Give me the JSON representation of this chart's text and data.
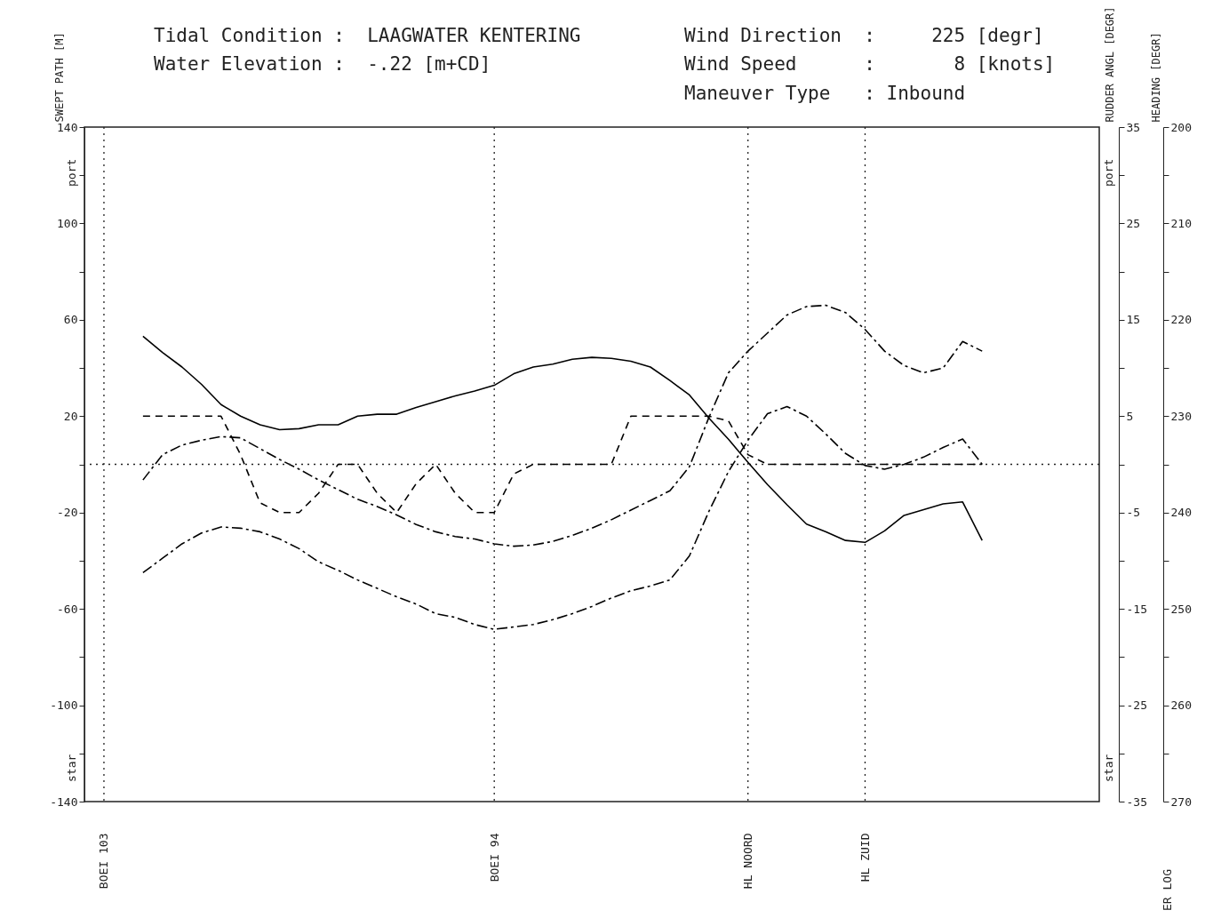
{
  "chart_data": {
    "type": "line",
    "categories": [
      "BOEI 103",
      null,
      null,
      null,
      null,
      null,
      null,
      null,
      null,
      null,
      null,
      null,
      null,
      null,
      null,
      null,
      null,
      null,
      null,
      null,
      "BOEI 94",
      null,
      null,
      null,
      null,
      null,
      null,
      null,
      null,
      null,
      null,
      null,
      null,
      "HL NOORD",
      null,
      null,
      null,
      null,
      null,
      "HL  ZUID",
      null,
      null,
      null,
      null,
      null,
      null,
      null,
      null,
      null,
      null,
      null
    ],
    "series": [
      {
        "color": "#000000",
        "line_style": "dashdot",
        "values": [
          null,
          null,
          -6.5,
          4,
          8,
          10,
          11.5,
          11,
          6.5,
          2,
          -2,
          -6.5,
          -10.5,
          -14.5,
          -17.5,
          -21,
          -25,
          -28,
          -30,
          -31,
          -33,
          -34,
          -33.5,
          -32,
          -29.5,
          -26.5,
          -23,
          -19,
          -15,
          -11,
          -1,
          19.5,
          38,
          47,
          54.5,
          62,
          65.5,
          66,
          63,
          56,
          47,
          41,
          38,
          40,
          51,
          47,
          null,
          null,
          null,
          null,
          null
        ]
      },
      {
        "color": "#000000",
        "line_style": "dashdot",
        "values": [
          null,
          null,
          -45,
          -39,
          -33,
          -28.5,
          -26,
          -26.5,
          -28,
          -31,
          -35,
          -40.5,
          -44,
          -48,
          -51.5,
          -55,
          -58,
          -62,
          -63.5,
          -66.5,
          -68.5,
          -67.5,
          -66.5,
          -64.5,
          -62,
          -59,
          -55.5,
          -52.5,
          -50.5,
          -48,
          -38,
          -19.5,
          -3,
          10,
          21,
          24,
          20,
          12.5,
          4.5,
          -0.5,
          -2,
          0,
          3,
          7,
          10.5,
          0,
          null,
          null,
          null,
          null,
          null
        ]
      },
      {
        "color": "#000000",
        "line_style": "dashed",
        "axis": "y2",
        "values": [
          null,
          null,
          5,
          5,
          5,
          5,
          5,
          1,
          -4,
          -5,
          -5,
          -3,
          0,
          0,
          -3,
          -5,
          -2,
          0,
          -3,
          -5,
          -5,
          -1,
          0,
          0,
          0,
          0,
          0,
          5,
          5,
          5,
          5,
          5,
          4.5,
          1,
          0,
          0,
          0,
          0,
          0,
          0,
          0,
          0,
          0,
          0,
          0,
          0,
          null,
          null,
          null,
          null,
          null
        ]
      },
      {
        "color": "#000000",
        "line_style": "solid",
        "axis": "y3",
        "values": [
          null,
          null,
          221.7,
          223.4,
          224.9,
          226.7,
          228.8,
          230,
          230.9,
          231.4,
          231.3,
          230.9,
          230.9,
          230,
          229.8,
          229.8,
          229.1,
          228.5,
          227.9,
          227.4,
          226.8,
          225.6,
          224.9,
          224.6,
          224.1,
          223.9,
          224,
          224.3,
          224.9,
          226.3,
          227.8,
          230.2,
          232.4,
          234.8,
          237.1,
          239.2,
          241.2,
          242,
          242.9,
          243.1,
          241.9,
          240.3,
          239.7,
          239.1,
          238.9,
          242.9,
          null,
          null,
          null,
          null,
          null
        ]
      }
    ],
    "ylabel": "SWEPT PATH [M]",
    "y2label": "RUDDER ANGL [DEGR]",
    "y3label": "HEADING [DEGR]",
    "ylim": [
      -140,
      140
    ],
    "yticks": [
      140,
      {
        "value": 120,
        "label": null
      },
      100,
      {
        "value": 80,
        "label": null
      },
      60,
      {
        "value": 40,
        "label": null
      },
      20,
      {
        "value": 0,
        "label": null
      },
      -20,
      {
        "value": -40,
        "label": null
      },
      -60,
      {
        "value": -80,
        "label": null
      },
      -100,
      {
        "value": -120,
        "label": null
      },
      -140
    ],
    "y2lim": [
      -35,
      35
    ],
    "y2ticks": [
      35,
      {
        "value": 30,
        "label": null
      },
      25,
      {
        "value": 20,
        "label": null
      },
      15,
      {
        "value": 10,
        "label": null
      },
      5,
      {
        "value": 0,
        "label": null
      },
      -5,
      {
        "value": -10,
        "label": null
      },
      -15,
      {
        "value": -20,
        "label": null
      },
      -25,
      {
        "value": -30,
        "label": null
      },
      -35
    ],
    "y3lim": [
      270,
      200
    ],
    "y3ticks": [
      200,
      {
        "value": 205,
        "label": null
      },
      210,
      {
        "value": 215,
        "label": null
      },
      220,
      {
        "value": 225,
        "label": null
      },
      230,
      {
        "value": 235,
        "label": null
      },
      240,
      {
        "value": 245,
        "label": null
      },
      250,
      {
        "value": 255,
        "label": null
      },
      260,
      {
        "value": 265,
        "label": null
      },
      270
    ],
    "ref_lines": [
      {
        "axis": "x",
        "value": "BOEI 103",
        "line_style": "dotted"
      },
      {
        "axis": "x",
        "value": "BOEI 94",
        "line_style": "dotted"
      },
      {
        "axis": "x",
        "value": "HL NOORD",
        "line_style": "dotted"
      },
      {
        "axis": "x",
        "value": "HL  ZUID",
        "line_style": "dotted"
      },
      {
        "axis": "y",
        "value": 0,
        "line_style": "dotted"
      }
    ],
    "annotations": [
      "Tidal Condition :  LAAGWATER KENTERING",
      "Water Elevation :  -.22 [m+CD]",
      "Wind Direction  :     225 [degr]",
      "Wind Speed      :       8 [knots]",
      "Maneuver Type   : Inbound",
      "port",
      "star",
      "port",
      "star",
      "ER LOG"
    ],
    "grid": false,
    "marker": "none"
  }
}
